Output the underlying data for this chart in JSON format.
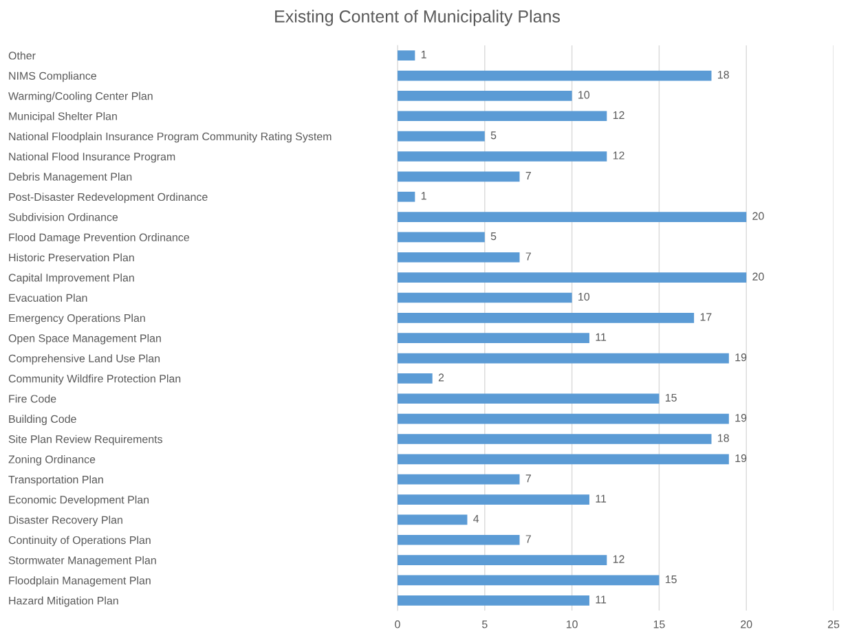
{
  "chart_data": {
    "type": "bar",
    "orientation": "horizontal",
    "title": "Existing Content of Municipality Plans",
    "categories": [
      "Other",
      "NIMS Compliance",
      "Warming/Cooling Center Plan",
      "Municipal Shelter Plan",
      "National Floodplain Insurance Program Community Rating System",
      "National Flood Insurance Program",
      "Debris Management Plan",
      "Post-Disaster Redevelopment Ordinance",
      "Subdivision Ordinance",
      "Flood Damage Prevention Ordinance",
      "Historic Preservation Plan",
      "Capital Improvement Plan",
      "Evacuation Plan",
      "Emergency Operations Plan",
      "Open Space Management Plan",
      "Comprehensive Land Use Plan",
      "Community Wildfire Protection Plan",
      "Fire Code",
      "Building Code",
      "Site Plan Review Requirements",
      "Zoning Ordinance",
      "Transportation Plan",
      "Economic Development Plan",
      "Disaster Recovery Plan",
      "Continuity of Operations Plan",
      "Stormwater Management Plan",
      "Floodplain Management Plan",
      "Hazard Mitigation Plan"
    ],
    "values": [
      1,
      18,
      10,
      12,
      5,
      12,
      7,
      1,
      20,
      5,
      7,
      20,
      10,
      17,
      11,
      19,
      2,
      15,
      19,
      18,
      19,
      7,
      11,
      4,
      7,
      12,
      15,
      11
    ],
    "color": "#5b9bd5",
    "xlim": [
      0,
      25
    ],
    "xticks": [
      0,
      5,
      10,
      15,
      20,
      25
    ],
    "grid": "x",
    "data_labels": true,
    "legend": false
  }
}
